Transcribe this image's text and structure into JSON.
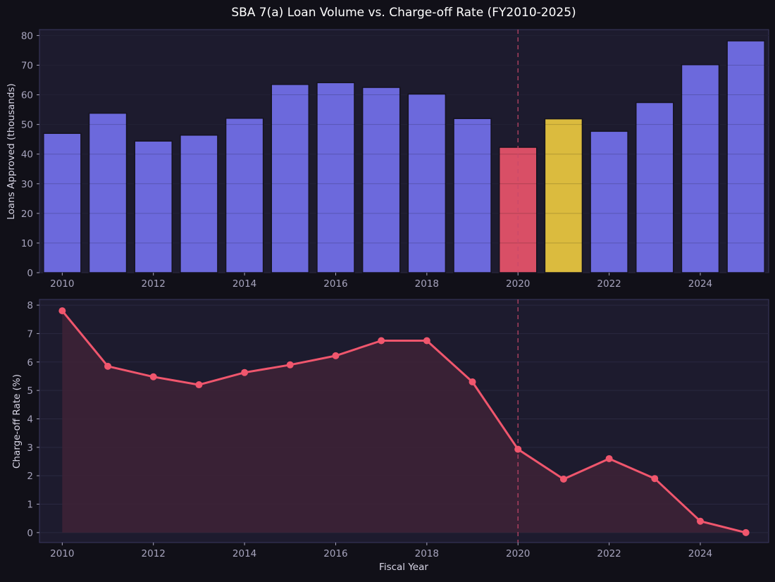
{
  "chart_data": [
    {
      "type": "bar",
      "title": "SBA 7(a) Loan Volume vs. Charge-off Rate (FY2010-2025)",
      "ylabel": "Loans Approved (thousands)",
      "xlabel": "",
      "ylim": [
        0,
        82
      ],
      "xlim": [
        2009.5,
        2025.5
      ],
      "yticks": [
        0,
        10,
        20,
        30,
        40,
        50,
        60,
        70,
        80
      ],
      "xticks": [
        2010,
        2012,
        2014,
        2016,
        2018,
        2020,
        2022,
        2024
      ],
      "grid": true,
      "reference_line_x": 2020,
      "categories": [
        2010,
        2011,
        2012,
        2013,
        2014,
        2015,
        2016,
        2017,
        2018,
        2019,
        2020,
        2021,
        2022,
        2023,
        2024,
        2025
      ],
      "values": [
        47.0,
        53.8,
        44.4,
        46.4,
        52.1,
        63.5,
        64.1,
        62.5,
        60.3,
        52.0,
        42.3,
        51.9,
        47.7,
        57.4,
        70.2,
        78.2
      ],
      "colors": [
        "#6c69dc",
        "#6c69dc",
        "#6c69dc",
        "#6c69dc",
        "#6c69dc",
        "#6c69dc",
        "#6c69dc",
        "#6c69dc",
        "#6c69dc",
        "#6c69dc",
        "#d94f66",
        "#dbbb3e",
        "#6c69dc",
        "#6c69dc",
        "#6c69dc",
        "#6c69dc"
      ]
    },
    {
      "type": "area",
      "ylabel": "Charge-off Rate (%)",
      "xlabel": "Fiscal Year",
      "ylim": [
        -0.35,
        8.2
      ],
      "xlim": [
        2009.5,
        2025.5
      ],
      "yticks": [
        0,
        1,
        2,
        3,
        4,
        5,
        6,
        7,
        8
      ],
      "xticks": [
        2010,
        2012,
        2014,
        2016,
        2018,
        2020,
        2022,
        2024
      ],
      "grid": true,
      "reference_line_x": 2020,
      "x": [
        2010,
        2011,
        2012,
        2013,
        2014,
        2015,
        2016,
        2017,
        2018,
        2019,
        2020,
        2021,
        2022,
        2023,
        2024,
        2025
      ],
      "values": [
        7.8,
        5.85,
        5.48,
        5.2,
        5.63,
        5.9,
        6.22,
        6.75,
        6.75,
        5.3,
        2.93,
        1.88,
        2.6,
        1.9,
        0.4,
        0.0
      ],
      "color": "#f0566d"
    }
  ],
  "colors": {
    "background": "#111018",
    "panel": "#1d1b2e",
    "panel_border": "#3b3860",
    "grid": "#2a2840",
    "tick_text": "#a7a4bd",
    "label_text": "#d8d6e6",
    "title_text": "#ffffff",
    "reference_line": "#c9486a",
    "area_fill": "#3d2236"
  }
}
